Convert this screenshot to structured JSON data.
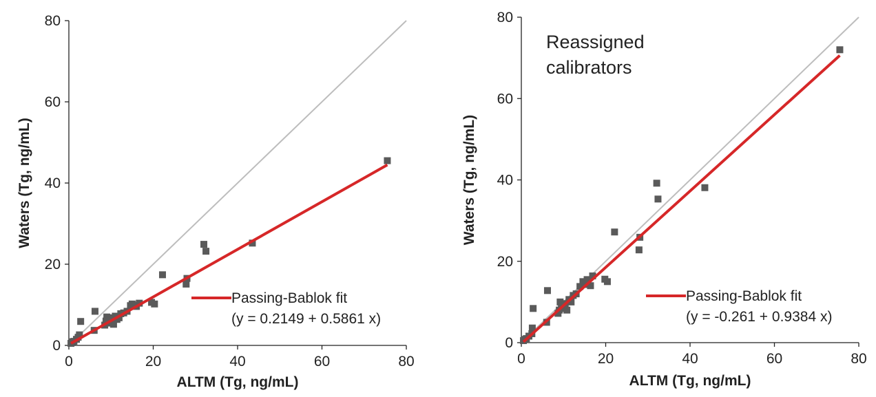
{
  "chart_data": [
    {
      "type": "scatter",
      "title": "",
      "annotation": "",
      "xlabel": "ALTM (Tg, ng/mL)",
      "ylabel": "Waters (Tg, ng/mL)",
      "xlim": [
        0,
        80
      ],
      "ylim": [
        0,
        80
      ],
      "xticks": [
        0,
        20,
        40,
        60,
        80
      ],
      "yticks": [
        0,
        20,
        40,
        60,
        80
      ],
      "grid": false,
      "legend_position": "bottom-right",
      "identity_line": {
        "color": "#bdbdbd"
      },
      "fit": {
        "label": "Passing-Bablok fit",
        "equation": "(y = 0.2149 + 0.5861 x)",
        "intercept": 0.2149,
        "slope": 0.5861,
        "x_range": [
          0.5,
          75.5
        ],
        "color": "#d62728"
      },
      "marker_color": "#5a5a5a",
      "points": [
        [
          0.5,
          0.5
        ],
        [
          0.8,
          0.9
        ],
        [
          1.2,
          1.0
        ],
        [
          1.8,
          1.5
        ],
        [
          2.2,
          2.0
        ],
        [
          2.5,
          2.6
        ],
        [
          2.8,
          5.9
        ],
        [
          6.0,
          3.7
        ],
        [
          6.2,
          8.4
        ],
        [
          8.5,
          5.0
        ],
        [
          8.8,
          6.0
        ],
        [
          9.0,
          7.0
        ],
        [
          9.2,
          5.5
        ],
        [
          9.5,
          6.2
        ],
        [
          10.0,
          5.8
        ],
        [
          10.3,
          6.8
        ],
        [
          10.6,
          5.2
        ],
        [
          11.0,
          7.2
        ],
        [
          11.4,
          6.4
        ],
        [
          11.9,
          6.8
        ],
        [
          12.3,
          7.8
        ],
        [
          13.0,
          8.0
        ],
        [
          13.8,
          8.4
        ],
        [
          14.6,
          9.8
        ],
        [
          15.0,
          10.2
        ],
        [
          15.5,
          9.9
        ],
        [
          16.0,
          9.6
        ],
        [
          16.7,
          10.4
        ],
        [
          19.6,
          10.6
        ],
        [
          20.3,
          10.2
        ],
        [
          22.2,
          17.4
        ],
        [
          27.8,
          15.1
        ],
        [
          28.0,
          16.5
        ],
        [
          32.0,
          24.9
        ],
        [
          32.5,
          23.2
        ],
        [
          43.5,
          25.2
        ],
        [
          75.5,
          45.5
        ]
      ]
    },
    {
      "type": "scatter",
      "title": "",
      "annotation": "Reassigned\ncalibrators",
      "xlabel": "ALTM (Tg, ng/mL)",
      "ylabel": "Waters (Tg, ng/mL)",
      "xlim": [
        0,
        80
      ],
      "ylim": [
        0,
        80
      ],
      "xticks": [
        0,
        20,
        40,
        60,
        80
      ],
      "yticks": [
        0,
        20,
        40,
        60,
        80
      ],
      "grid": false,
      "legend_position": "bottom-right",
      "identity_line": {
        "color": "#bdbdbd"
      },
      "fit": {
        "label": "Passing-Bablok fit",
        "equation": "(y = -0.261 + 0.9384 x)",
        "intercept": -0.261,
        "slope": 0.9384,
        "x_range": [
          0.5,
          75.5
        ],
        "color": "#d62728"
      },
      "marker_color": "#5a5a5a",
      "points": [
        [
          0.5,
          0.5
        ],
        [
          0.8,
          0.8
        ],
        [
          1.2,
          1.0
        ],
        [
          1.8,
          1.6
        ],
        [
          2.5,
          2.2
        ],
        [
          2.6,
          3.6
        ],
        [
          2.8,
          8.4
        ],
        [
          6.0,
          5.0
        ],
        [
          6.2,
          12.8
        ],
        [
          8.7,
          7.2
        ],
        [
          9.0,
          8.0
        ],
        [
          9.2,
          10.0
        ],
        [
          9.5,
          9.0
        ],
        [
          10.0,
          8.4
        ],
        [
          10.4,
          9.6
        ],
        [
          10.8,
          8.0
        ],
        [
          11.3,
          10.6
        ],
        [
          11.8,
          10.0
        ],
        [
          12.3,
          11.6
        ],
        [
          13.0,
          12.0
        ],
        [
          13.9,
          13.8
        ],
        [
          14.6,
          15.0
        ],
        [
          15.2,
          14.3
        ],
        [
          15.6,
          15.5
        ],
        [
          16.4,
          14.0
        ],
        [
          16.9,
          16.4
        ],
        [
          19.8,
          15.6
        ],
        [
          20.4,
          15.0
        ],
        [
          22.1,
          27.2
        ],
        [
          27.9,
          22.8
        ],
        [
          28.1,
          25.9
        ],
        [
          32.1,
          39.2
        ],
        [
          32.4,
          35.3
        ],
        [
          43.5,
          38.1
        ],
        [
          75.5,
          72.0
        ]
      ]
    }
  ]
}
